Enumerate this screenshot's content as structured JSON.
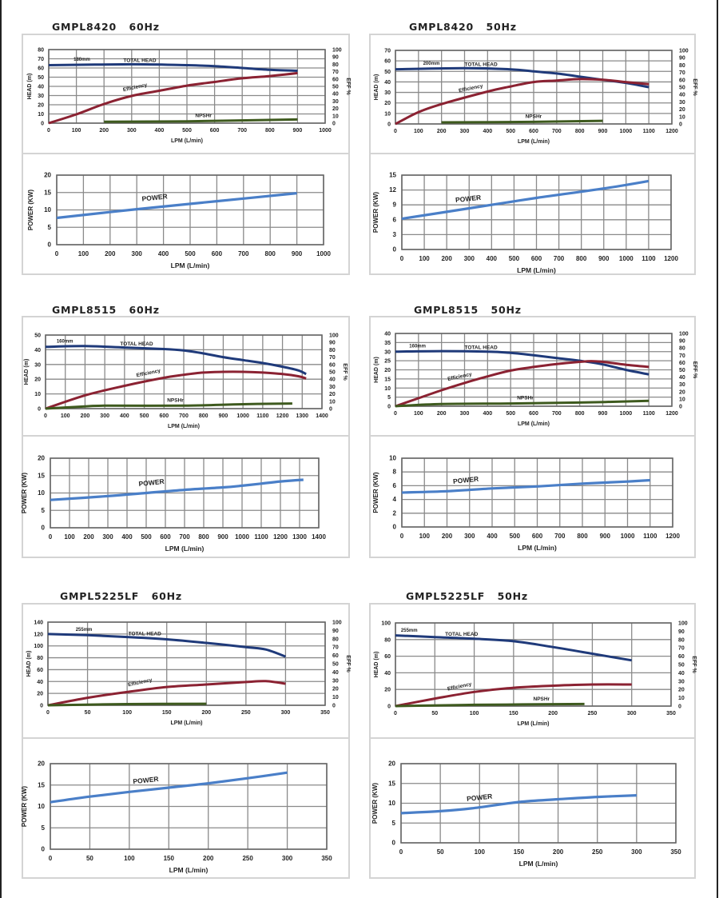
{
  "chart_data": [
    {
      "type": "line",
      "title": "GMPL8420   60Hz",
      "xlabel": "LPM (L/min)",
      "ylabel": "HEAD (m)",
      "y2label": "EFF %",
      "xlim": [
        0,
        1000
      ],
      "xstep": 100,
      "ylim": [
        0,
        80
      ],
      "ystep": 10,
      "y2lim": [
        0,
        100
      ],
      "y2step": 10,
      "grid": true,
      "annotation": "180mm",
      "series": [
        {
          "name": "TOTAL HEAD",
          "axis": "left",
          "color": "#1f3a7a",
          "points": [
            [
              0,
              63
            ],
            [
              300,
              64
            ],
            [
              500,
              63
            ],
            [
              600,
              62
            ],
            [
              700,
              60
            ],
            [
              800,
              58
            ],
            [
              900,
              57
            ]
          ]
        },
        {
          "name": "Efficiency",
          "axis": "right",
          "color": "#8b2232",
          "points": [
            [
              0,
              0
            ],
            [
              100,
              12
            ],
            [
              200,
              26
            ],
            [
              300,
              37
            ],
            [
              400,
              44
            ],
            [
              500,
              51
            ],
            [
              600,
              56
            ],
            [
              700,
              61
            ],
            [
              800,
              64
            ],
            [
              900,
              68
            ]
          ]
        },
        {
          "name": "NPSHr",
          "axis": "left",
          "color": "#3e5a1e",
          "points": [
            [
              200,
              1.5
            ],
            [
              500,
              2
            ],
            [
              900,
              4
            ]
          ]
        }
      ]
    },
    {
      "type": "line",
      "xlabel": "LPM  (L/min)",
      "ylabel": "POWER (KW)",
      "xlim": [
        0,
        1000
      ],
      "xstep": 100,
      "ylim": [
        0,
        20
      ],
      "ystep": 5,
      "grid": true,
      "series": [
        {
          "name": "POWER",
          "color": "#4a7fc8",
          "points": [
            [
              0,
              7.7
            ],
            [
              300,
              10.2
            ],
            [
              600,
              12.5
            ],
            [
              900,
              14.8
            ]
          ]
        }
      ]
    },
    {
      "type": "line",
      "title": "GMPL8420   50Hz",
      "xlabel": "LPM (L/min)",
      "ylabel": "HEAD (m)",
      "y2label": "EFF %",
      "xlim": [
        0,
        1200
      ],
      "xstep": 100,
      "ylim": [
        0,
        70
      ],
      "ystep": 10,
      "y2lim": [
        0,
        100
      ],
      "y2step": 10,
      "grid": true,
      "annotation": "200mm",
      "series": [
        {
          "name": "TOTAL HEAD",
          "axis": "left",
          "color": "#1f3a7a",
          "points": [
            [
              0,
              52
            ],
            [
              300,
              53
            ],
            [
              500,
              52
            ],
            [
              600,
              50
            ],
            [
              700,
              48
            ],
            [
              800,
              45
            ],
            [
              900,
              42
            ],
            [
              1000,
              39
            ],
            [
              1100,
              35
            ]
          ]
        },
        {
          "name": "Efficiency",
          "axis": "right",
          "color": "#8b2232",
          "points": [
            [
              0,
              0
            ],
            [
              100,
              16
            ],
            [
              200,
              27
            ],
            [
              400,
              44
            ],
            [
              500,
              51
            ],
            [
              600,
              57
            ],
            [
              700,
              59
            ],
            [
              800,
              61
            ],
            [
              900,
              60
            ],
            [
              1000,
              57
            ],
            [
              1100,
              54
            ]
          ]
        },
        {
          "name": "NPSHr",
          "axis": "left",
          "color": "#3e5a1e",
          "points": [
            [
              200,
              1.5
            ],
            [
              600,
              2
            ],
            [
              900,
              3
            ]
          ]
        }
      ]
    },
    {
      "type": "line",
      "xlabel": "LPM  (L/min)",
      "ylabel": "POWER (KW)",
      "xlim": [
        0,
        1200
      ],
      "xstep": 100,
      "ylim": [
        0,
        15
      ],
      "ystep": 3,
      "grid": true,
      "series": [
        {
          "name": "POWER",
          "color": "#4a7fc8",
          "points": [
            [
              0,
              6.2
            ],
            [
              300,
              8.3
            ],
            [
              600,
              10.4
            ],
            [
              900,
              12.3
            ],
            [
              1100,
              13.8
            ]
          ]
        }
      ]
    },
    {
      "type": "line",
      "title": "GMPL8515   60Hz",
      "xlabel": "LPM (L/min)",
      "ylabel": "HEAD (m)",
      "y2label": "EFF %",
      "xlim": [
        0,
        1400
      ],
      "xstep": 100,
      "ylim": [
        0,
        50
      ],
      "ystep": 10,
      "y2lim": [
        0,
        100
      ],
      "y2step": 10,
      "grid": true,
      "annotation": "160mm",
      "series": [
        {
          "name": "TOTAL HEAD",
          "axis": "left",
          "color": "#1f3a7a",
          "points": [
            [
              0,
              42
            ],
            [
              200,
              42.5
            ],
            [
              400,
              41.5
            ],
            [
              600,
              40.5
            ],
            [
              700,
              39.5
            ],
            [
              800,
              37.5
            ],
            [
              900,
              35
            ],
            [
              1000,
              33
            ],
            [
              1100,
              31
            ],
            [
              1200,
              28.5
            ],
            [
              1280,
              26
            ],
            [
              1320,
              23.5
            ]
          ]
        },
        {
          "name": "Efficiency",
          "axis": "right",
          "color": "#8b2232",
          "points": [
            [
              0,
              0
            ],
            [
              200,
              18
            ],
            [
              400,
              31
            ],
            [
              600,
              42
            ],
            [
              700,
              46
            ],
            [
              800,
              49
            ],
            [
              900,
              50
            ],
            [
              1000,
              50
            ],
            [
              1100,
              49
            ],
            [
              1200,
              47
            ],
            [
              1280,
              44
            ],
            [
              1320,
              41
            ]
          ]
        },
        {
          "name": "NPSHr",
          "axis": "left",
          "color": "#3e5a1e",
          "points": [
            [
              0,
              0
            ],
            [
              200,
              1.5
            ],
            [
              300,
              2
            ],
            [
              700,
              2
            ],
            [
              1000,
              3
            ],
            [
              1250,
              3.5
            ]
          ]
        }
      ]
    },
    {
      "type": "line",
      "xlabel": "LPM  (L/min)",
      "ylabel": "POWER (KW)",
      "xlim": [
        0,
        1400
      ],
      "xstep": 100,
      "ylim": [
        0,
        20
      ],
      "ystep": 5,
      "grid": true,
      "series": [
        {
          "name": "POWER",
          "color": "#4a7fc8",
          "points": [
            [
              0,
              8
            ],
            [
              300,
              9.1
            ],
            [
              500,
              10
            ],
            [
              700,
              10.9
            ],
            [
              900,
              11.6
            ],
            [
              1000,
              12.1
            ],
            [
              1100,
              12.7
            ],
            [
              1200,
              13.3
            ],
            [
              1320,
              13.8
            ]
          ]
        }
      ]
    },
    {
      "type": "line",
      "title": "GMPL8515   50Hz",
      "xlabel": "LPM (L/min)",
      "ylabel": "HEAD (m)",
      "y2label": "EFF %",
      "xlim": [
        0,
        1200
      ],
      "xstep": 100,
      "ylim": [
        0,
        40
      ],
      "ystep": 5,
      "y2lim": [
        0,
        100
      ],
      "y2step": 10,
      "grid": true,
      "annotation": "160mm",
      "series": [
        {
          "name": "TOTAL HEAD",
          "axis": "left",
          "color": "#1f3a7a",
          "points": [
            [
              0,
              30
            ],
            [
              200,
              30.3
            ],
            [
              400,
              30
            ],
            [
              500,
              29.3
            ],
            [
              600,
              28
            ],
            [
              700,
              26.5
            ],
            [
              800,
              25
            ],
            [
              900,
              23
            ],
            [
              1000,
              20
            ],
            [
              1100,
              17.5
            ]
          ]
        },
        {
          "name": "Efficiency",
          "axis": "right",
          "color": "#8b2232",
          "points": [
            [
              0,
              0
            ],
            [
              100,
              11
            ],
            [
              200,
              22
            ],
            [
              300,
              32
            ],
            [
              400,
              41
            ],
            [
              500,
              49
            ],
            [
              600,
              54
            ],
            [
              700,
              58
            ],
            [
              800,
              61
            ],
            [
              850,
              62
            ],
            [
              900,
              61
            ],
            [
              1000,
              57
            ],
            [
              1100,
              54
            ]
          ]
        },
        {
          "name": "NPSHr",
          "axis": "left",
          "color": "#3e5a1e",
          "points": [
            [
              0,
              0
            ],
            [
              200,
              1.2
            ],
            [
              500,
              1.5
            ],
            [
              800,
              2
            ],
            [
              1100,
              3
            ]
          ]
        }
      ]
    },
    {
      "type": "line",
      "xlabel": "LPM  (L/min)",
      "ylabel": "POWER (KW)",
      "xlim": [
        0,
        1200
      ],
      "xstep": 100,
      "ylim": [
        0,
        10
      ],
      "ystep": 2,
      "grid": true,
      "series": [
        {
          "name": "POWER",
          "color": "#4a7fc8",
          "points": [
            [
              0,
              5
            ],
            [
              200,
              5.2
            ],
            [
              400,
              5.6
            ],
            [
              600,
              5.9
            ],
            [
              800,
              6.3
            ],
            [
              1000,
              6.6
            ],
            [
              1100,
              6.8
            ]
          ]
        }
      ]
    },
    {
      "type": "line",
      "title": "GMPL5225LF   60Hz",
      "xlabel": "LPM (L/min)",
      "ylabel": "HEAD (m)",
      "y2label": "EFF %",
      "xlim": [
        0,
        350
      ],
      "xstep": 50,
      "ylim": [
        0,
        140
      ],
      "ystep": 20,
      "y2lim": [
        0,
        100
      ],
      "y2step": 10,
      "grid": true,
      "annotation": "255mm",
      "series": [
        {
          "name": "TOTAL HEAD",
          "axis": "left",
          "color": "#1f3a7a",
          "points": [
            [
              0,
              120
            ],
            [
              50,
              118
            ],
            [
              100,
              115
            ],
            [
              150,
              111
            ],
            [
              200,
              105
            ],
            [
              250,
              98
            ],
            [
              275,
              94
            ],
            [
              300,
              82
            ]
          ]
        },
        {
          "name": "Efficiency",
          "axis": "right",
          "color": "#8b2232",
          "points": [
            [
              0,
              0
            ],
            [
              50,
              9
            ],
            [
              100,
              16
            ],
            [
              150,
              22
            ],
            [
              200,
              25
            ],
            [
              250,
              28
            ],
            [
              275,
              29
            ],
            [
              300,
              26
            ]
          ]
        },
        {
          "axis": "left",
          "color": "#3e5a1e",
          "points": [
            [
              0,
              0
            ],
            [
              100,
              2
            ],
            [
              200,
              2.5
            ]
          ]
        }
      ]
    },
    {
      "type": "line",
      "xlabel": "LPM  (L/min)",
      "ylabel": "POWER (KW)",
      "xlim": [
        0,
        350
      ],
      "xstep": 50,
      "ylim": [
        0,
        20
      ],
      "ystep": 5,
      "grid": true,
      "series": [
        {
          "name": "POWER",
          "color": "#4a7fc8",
          "points": [
            [
              0,
              11
            ],
            [
              50,
              12.3
            ],
            [
              100,
              13.4
            ],
            [
              150,
              14.4
            ],
            [
              200,
              15.4
            ],
            [
              250,
              16.6
            ],
            [
              300,
              17.9
            ]
          ]
        }
      ]
    },
    {
      "type": "line",
      "title": "GMPL5225LF   50Hz",
      "xlabel": "LPM (L/min)",
      "ylabel": "HEAD (m)",
      "y2label": "EFF %",
      "xlim": [
        0,
        350
      ],
      "xstep": 50,
      "ylim": [
        0,
        100
      ],
      "ystep": 20,
      "y2lim": [
        0,
        100
      ],
      "y2step": 10,
      "grid": true,
      "annotation": "255mm",
      "series": [
        {
          "name": "TOTAL HEAD",
          "axis": "left",
          "color": "#1f3a7a",
          "points": [
            [
              0,
              85
            ],
            [
              50,
              83
            ],
            [
              100,
              81
            ],
            [
              150,
              78
            ],
            [
              200,
              71
            ],
            [
              250,
              63
            ],
            [
              300,
              55
            ]
          ]
        },
        {
          "name": "Efficiency",
          "axis": "right",
          "color": "#8b2232",
          "points": [
            [
              0,
              0
            ],
            [
              50,
              9
            ],
            [
              100,
              17
            ],
            [
              150,
              22
            ],
            [
              200,
              24.5
            ],
            [
              250,
              26
            ],
            [
              300,
              26
            ]
          ]
        },
        {
          "name": "NPSHr",
          "axis": "left",
          "color": "#3e5a1e",
          "points": [
            [
              0,
              0
            ],
            [
              100,
              1.5
            ],
            [
              240,
              2.5
            ]
          ]
        }
      ]
    },
    {
      "type": "line",
      "xlabel": "LPM  (L/min)",
      "ylabel": "POWER (KW)",
      "xlim": [
        0,
        350
      ],
      "xstep": 50,
      "ylim": [
        0,
        20
      ],
      "ystep": 5,
      "grid": true,
      "series": [
        {
          "name": "POWER",
          "color": "#4a7fc8",
          "points": [
            [
              0,
              7.5
            ],
            [
              50,
              8
            ],
            [
              90,
              8.7
            ],
            [
              150,
              10.3
            ],
            [
              200,
              11
            ],
            [
              250,
              11.6
            ],
            [
              300,
              12
            ]
          ]
        }
      ]
    }
  ]
}
